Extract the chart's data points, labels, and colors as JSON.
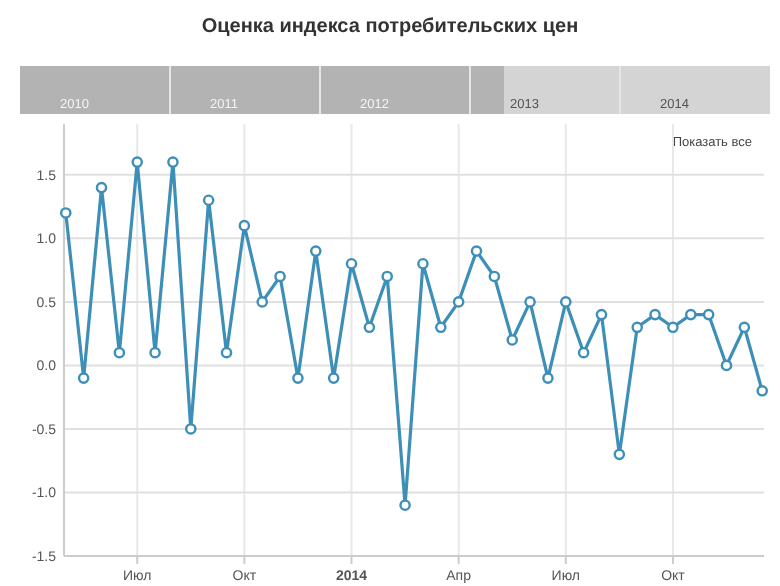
{
  "chart_data": {
    "type": "line",
    "title": "Оценка индекса потребительских цен",
    "categories": [
      null,
      null,
      null,
      null,
      "Июл",
      null,
      null,
      null,
      null,
      null,
      "Окт",
      null,
      null,
      null,
      null,
      null,
      "2014",
      null,
      null,
      null,
      null,
      null,
      "Апр",
      null,
      null,
      null,
      null,
      null,
      "Июл",
      null,
      null,
      null,
      null,
      null,
      "Окт",
      null,
      null,
      null,
      null,
      null
    ],
    "series": [
      {
        "color": "#3d8fb8",
        "values": [
          1.2,
          -0.1,
          1.4,
          0.1,
          1.6,
          0.1,
          1.6,
          -0.5,
          1.3,
          0.1,
          1.1,
          0.5,
          0.7,
          -0.1,
          0.9,
          -0.1,
          0.8,
          0.3,
          0.7,
          -1.1,
          0.8,
          0.3,
          0.5,
          0.9,
          0.7,
          0.2,
          0.5,
          -0.1,
          0.5,
          0.1,
          0.4,
          -0.7,
          0.3,
          0.4,
          0.3,
          0.4,
          0.4,
          0.0,
          0.3,
          -0.2
        ]
      }
    ],
    "ylim": [
      -1.5,
      1.9
    ],
    "yticks": [
      {
        "value": -1.5,
        "label": "-1.5"
      },
      {
        "value": -1,
        "label": "-1.0"
      },
      {
        "value": -0.5,
        "label": "-0.5"
      },
      {
        "value": 0,
        "label": "0.0"
      },
      {
        "value": 0.5,
        "label": "0.5"
      },
      {
        "value": 1,
        "label": "1.0"
      },
      {
        "value": 1.5,
        "label": "1.5"
      }
    ],
    "grid": true,
    "marker": "circle",
    "line_style": "solid",
    "annotations": [
      "2010",
      "2011",
      "2012",
      "2013",
      "2014",
      "Показать все"
    ]
  }
}
